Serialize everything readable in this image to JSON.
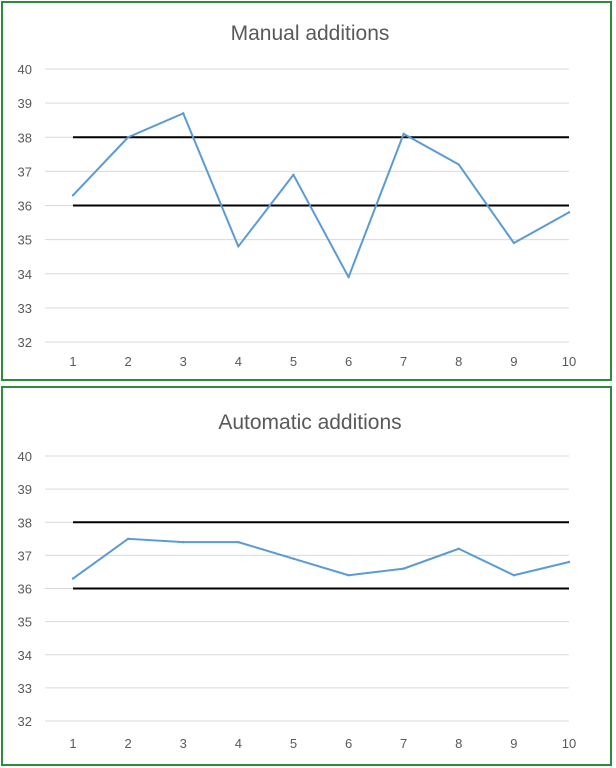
{
  "chart_data": [
    {
      "type": "line",
      "title": "Manual additions",
      "xlabel": "",
      "ylabel": "",
      "x": [
        1,
        2,
        3,
        4,
        5,
        6,
        7,
        8,
        9,
        10
      ],
      "ylim": [
        32,
        40
      ],
      "yticks": [
        32,
        33,
        34,
        35,
        36,
        37,
        38,
        39,
        40
      ],
      "grid": true,
      "series": [
        {
          "values": [
            36.3,
            38.0,
            38.7,
            34.8,
            36.9,
            33.9,
            38.1,
            37.2,
            34.9,
            35.8
          ]
        }
      ],
      "reference_lines": [
        38,
        36
      ],
      "colors": {
        "series": "#5b9bd5",
        "reference": "#000000",
        "frame": "#2e8b3e"
      }
    },
    {
      "type": "line",
      "title": "Automatic additions",
      "xlabel": "",
      "ylabel": "",
      "x": [
        1,
        2,
        3,
        4,
        5,
        6,
        7,
        8,
        9,
        10
      ],
      "ylim": [
        32,
        40
      ],
      "yticks": [
        32,
        33,
        34,
        35,
        36,
        37,
        38,
        39,
        40
      ],
      "grid": true,
      "series": [
        {
          "values": [
            36.3,
            37.5,
            37.4,
            37.4,
            36.9,
            36.4,
            36.6,
            37.2,
            36.4,
            36.8
          ]
        }
      ],
      "reference_lines": [
        38,
        36
      ],
      "colors": {
        "series": "#5b9bd5",
        "reference": "#000000",
        "frame": "#2e8b3e"
      }
    }
  ]
}
